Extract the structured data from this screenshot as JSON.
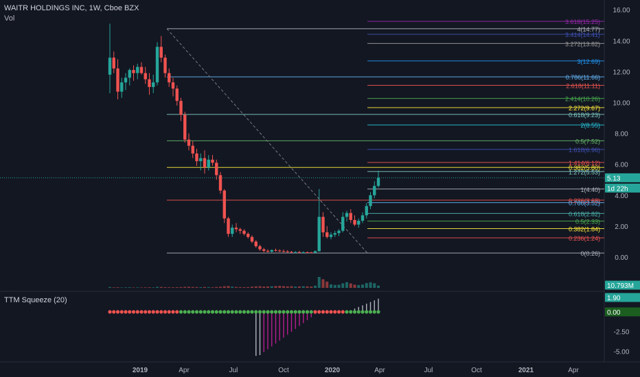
{
  "header": {
    "title": "WAITR HOLDINGS INC, 1W, Cboe BZX",
    "volume_label": "Vol",
    "indicator_label": "TTM Squeeze (20)"
  },
  "colors": {
    "background": "#131722",
    "up": "#26a69a",
    "down": "#ef5350",
    "squeeze_on": "#ef5350",
    "squeeze_off": "#4caf50",
    "momentum_neg": "#b71c8e",
    "momentum_pos": "#b2b5be"
  },
  "chart_data": [
    {
      "type": "candlestick",
      "title": "WAITR HOLDINGS INC, 1W, Cboe BZX",
      "ylim": [
        -0.5,
        16
      ],
      "y_ticks": [
        "0.00",
        "2.00",
        "4.00",
        "6.00",
        "8.00",
        "10.00",
        "12.00",
        "14.00",
        "16.00"
      ],
      "x_ticks": [
        "2019",
        "Apr",
        "Jul",
        "Oct",
        "2020",
        "Apr",
        "Jul",
        "Oct",
        "2021",
        "Apr"
      ],
      "series": [
        {
          "name": "WAITR HOLDINGS INC",
          "values": [
            {
              "o": 11.8,
              "h": 15.1,
              "l": 10.6,
              "c": 12.9
            },
            {
              "o": 12.9,
              "h": 13.3,
              "l": 11.9,
              "c": 12.2
            },
            {
              "o": 12.2,
              "h": 12.8,
              "l": 10.2,
              "c": 10.7
            },
            {
              "o": 10.7,
              "h": 11.6,
              "l": 10.3,
              "c": 11.3
            },
            {
              "o": 11.3,
              "h": 11.9,
              "l": 10.8,
              "c": 11.6
            },
            {
              "o": 11.6,
              "h": 12.2,
              "l": 11.1,
              "c": 12.1
            },
            {
              "o": 12.1,
              "h": 12.4,
              "l": 11.4,
              "c": 11.9
            },
            {
              "o": 11.9,
              "h": 12.5,
              "l": 11.5,
              "c": 12.3
            },
            {
              "o": 12.3,
              "h": 12.6,
              "l": 11.8,
              "c": 11.9
            },
            {
              "o": 11.9,
              "h": 12.3,
              "l": 11.2,
              "c": 11.5
            },
            {
              "o": 11.5,
              "h": 11.9,
              "l": 10.5,
              "c": 11.0
            },
            {
              "o": 11.0,
              "h": 11.8,
              "l": 10.6,
              "c": 11.3
            },
            {
              "o": 11.3,
              "h": 13.9,
              "l": 11.1,
              "c": 13.6
            },
            {
              "o": 13.6,
              "h": 14.3,
              "l": 12.6,
              "c": 12.9
            },
            {
              "o": 12.9,
              "h": 13.1,
              "l": 11.6,
              "c": 11.9
            },
            {
              "o": 11.9,
              "h": 12.2,
              "l": 11.0,
              "c": 11.3
            },
            {
              "o": 11.3,
              "h": 11.6,
              "l": 10.4,
              "c": 10.9
            },
            {
              "o": 10.9,
              "h": 11.1,
              "l": 9.8,
              "c": 10.1
            },
            {
              "o": 10.1,
              "h": 10.3,
              "l": 8.8,
              "c": 9.2
            },
            {
              "o": 9.2,
              "h": 9.4,
              "l": 7.4,
              "c": 7.6
            },
            {
              "o": 7.6,
              "h": 8.0,
              "l": 6.9,
              "c": 7.2
            },
            {
              "o": 7.2,
              "h": 7.5,
              "l": 6.4,
              "c": 6.7
            },
            {
              "o": 6.7,
              "h": 7.0,
              "l": 5.9,
              "c": 6.2
            },
            {
              "o": 6.2,
              "h": 6.7,
              "l": 5.6,
              "c": 6.4
            },
            {
              "o": 6.4,
              "h": 6.9,
              "l": 5.4,
              "c": 5.8
            },
            {
              "o": 5.8,
              "h": 6.6,
              "l": 5.6,
              "c": 6.3
            },
            {
              "o": 6.3,
              "h": 6.6,
              "l": 5.9,
              "c": 6.1
            },
            {
              "o": 6.1,
              "h": 6.3,
              "l": 5.0,
              "c": 5.3
            },
            {
              "o": 5.3,
              "h": 5.5,
              "l": 4.1,
              "c": 4.3
            },
            {
              "o": 4.3,
              "h": 4.4,
              "l": 2.2,
              "c": 2.5
            },
            {
              "o": 2.5,
              "h": 2.6,
              "l": 1.3,
              "c": 1.5
            },
            {
              "o": 1.5,
              "h": 2.1,
              "l": 1.3,
              "c": 1.9
            },
            {
              "o": 1.9,
              "h": 2.2,
              "l": 1.6,
              "c": 1.8
            },
            {
              "o": 1.8,
              "h": 1.9,
              "l": 1.5,
              "c": 1.7
            },
            {
              "o": 1.7,
              "h": 1.8,
              "l": 1.4,
              "c": 1.5
            },
            {
              "o": 1.5,
              "h": 1.6,
              "l": 1.2,
              "c": 1.3
            },
            {
              "o": 1.3,
              "h": 1.4,
              "l": 0.9,
              "c": 1.0
            },
            {
              "o": 1.0,
              "h": 1.1,
              "l": 0.6,
              "c": 0.7
            },
            {
              "o": 0.7,
              "h": 0.8,
              "l": 0.4,
              "c": 0.5
            },
            {
              "o": 0.5,
              "h": 0.6,
              "l": 0.3,
              "c": 0.4
            },
            {
              "o": 0.4,
              "h": 0.5,
              "l": 0.3,
              "c": 0.35
            },
            {
              "o": 0.35,
              "h": 0.5,
              "l": 0.3,
              "c": 0.45
            },
            {
              "o": 0.45,
              "h": 0.55,
              "l": 0.35,
              "c": 0.42
            },
            {
              "o": 0.42,
              "h": 0.5,
              "l": 0.32,
              "c": 0.38
            },
            {
              "o": 0.38,
              "h": 0.48,
              "l": 0.3,
              "c": 0.36
            },
            {
              "o": 0.36,
              "h": 0.45,
              "l": 0.28,
              "c": 0.33
            },
            {
              "o": 0.33,
              "h": 0.4,
              "l": 0.27,
              "c": 0.3
            },
            {
              "o": 0.3,
              "h": 0.38,
              "l": 0.26,
              "c": 0.32
            },
            {
              "o": 0.32,
              "h": 0.4,
              "l": 0.27,
              "c": 0.3
            },
            {
              "o": 0.3,
              "h": 0.37,
              "l": 0.26,
              "c": 0.31
            },
            {
              "o": 0.31,
              "h": 0.36,
              "l": 0.27,
              "c": 0.3
            },
            {
              "o": 0.3,
              "h": 0.34,
              "l": 0.26,
              "c": 0.28
            },
            {
              "o": 0.28,
              "h": 0.42,
              "l": 0.26,
              "c": 0.38
            },
            {
              "o": 0.38,
              "h": 4.4,
              "l": 0.35,
              "c": 2.6
            },
            {
              "o": 2.6,
              "h": 2.9,
              "l": 1.3,
              "c": 1.6
            },
            {
              "o": 1.6,
              "h": 2.0,
              "l": 1.2,
              "c": 1.3
            },
            {
              "o": 1.3,
              "h": 1.6,
              "l": 1.15,
              "c": 1.45
            },
            {
              "o": 1.45,
              "h": 1.7,
              "l": 1.3,
              "c": 1.55
            },
            {
              "o": 1.55,
              "h": 1.8,
              "l": 1.35,
              "c": 1.7
            },
            {
              "o": 1.7,
              "h": 2.9,
              "l": 1.6,
              "c": 2.6
            },
            {
              "o": 2.6,
              "h": 3.0,
              "l": 2.3,
              "c": 2.85
            },
            {
              "o": 2.85,
              "h": 3.1,
              "l": 2.2,
              "c": 2.4
            },
            {
              "o": 2.4,
              "h": 2.7,
              "l": 2.0,
              "c": 2.1
            },
            {
              "o": 2.1,
              "h": 2.5,
              "l": 1.9,
              "c": 2.35
            },
            {
              "o": 2.35,
              "h": 2.9,
              "l": 2.2,
              "c": 2.7
            },
            {
              "o": 2.7,
              "h": 3.5,
              "l": 2.5,
              "c": 3.3
            },
            {
              "o": 3.3,
              "h": 4.2,
              "l": 3.1,
              "c": 4.0
            },
            {
              "o": 4.0,
              "h": 4.9,
              "l": 3.8,
              "c": 4.6
            },
            {
              "o": 4.6,
              "h": 5.6,
              "l": 4.5,
              "c": 5.13
            }
          ]
        }
      ],
      "fibonacci": [
        {
          "label": "3.618(15.25)",
          "value": 15.25,
          "color": "#9c27b0"
        },
        {
          "label": "4(14.77)",
          "value": 14.77,
          "color": "#b2b5be"
        },
        {
          "label": "3.414(14.41)",
          "value": 14.41,
          "color": "#3f51b5"
        },
        {
          "label": "3.272(13.82)",
          "value": 13.82,
          "color": "#9e9e9e"
        },
        {
          "label": "3(12.69)",
          "value": 12.69,
          "color": "#2196f3"
        },
        {
          "label": "0.786(11.66)",
          "value": 11.66,
          "color": "#64b5f6"
        },
        {
          "label": "2.618(11.11)",
          "value": 11.11,
          "color": "#ef5350"
        },
        {
          "label": "2.414(10.26)",
          "value": 10.26,
          "color": "#4caf50"
        },
        {
          "label": "2.272(9.67)",
          "value": 9.67,
          "color": "#ffeb3b"
        },
        {
          "label": "0.618(9.23)",
          "value": 9.23,
          "color": "#80cbc4"
        },
        {
          "label": "2(8.55)",
          "value": 8.55,
          "color": "#26c6da"
        },
        {
          "label": "0.5(7.52)",
          "value": 7.52,
          "color": "#66bb6a"
        },
        {
          "label": "1.618(6.96)",
          "value": 6.96,
          "color": "#3f51b5"
        },
        {
          "label": "1.414(6.12)",
          "value": 6.12,
          "color": "#ef5350"
        },
        {
          "label": "0.382(5.80)",
          "value": 5.8,
          "color": "#ffeb3b"
        },
        {
          "label": "1.272(5.53)",
          "value": 5.53,
          "color": "#80cbc4"
        },
        {
          "label": "1(4.40)",
          "value": 4.4,
          "color": "#b2b5be"
        },
        {
          "label": "0.236(3.68)",
          "value": 3.68,
          "color": "#ef5350"
        },
        {
          "label": "0.786(3.52)",
          "value": 3.52,
          "color": "#64b5f6"
        },
        {
          "label": "0.618(2.82)",
          "value": 2.82,
          "color": "#4db6ac"
        },
        {
          "label": "0.5(2.33)",
          "value": 2.33,
          "color": "#4caf50"
        },
        {
          "label": "0.382(1.84)",
          "value": 1.84,
          "color": "#ffeb3b"
        },
        {
          "label": "0.236(1.24)",
          "value": 1.24,
          "color": "#ef5350"
        },
        {
          "label": "0(0.26)",
          "value": 0.26,
          "color": "#b2b5be"
        }
      ],
      "last_price": {
        "value": 5.13,
        "label": "5.13",
        "countdown": "1d 22h"
      },
      "volume": {
        "badge": "10.793M",
        "values": [
          0.8,
          0.5,
          0.6,
          0.4,
          0.5,
          0.6,
          0.4,
          0.5,
          0.4,
          0.5,
          0.6,
          0.5,
          1.0,
          0.9,
          0.7,
          0.6,
          0.6,
          0.7,
          0.8,
          1.0,
          1.1,
          0.9,
          0.8,
          0.7,
          0.9,
          0.8,
          0.6,
          0.9,
          1.1,
          1.6,
          1.8,
          1.2,
          0.9,
          0.8,
          0.7,
          0.8,
          1.2,
          1.5,
          1.6,
          1.3,
          1.4,
          1.6,
          1.8,
          2.0,
          1.7,
          1.5,
          1.6,
          1.3,
          1.4,
          1.6,
          1.5,
          1.3,
          2.2,
          10.8,
          8.5,
          6.2,
          3.5,
          2.9,
          3.1,
          4.5,
          5.6,
          4.4,
          3.2,
          2.8,
          3.3,
          4.8,
          5.5,
          4.6,
          2.3
        ]
      },
      "squeeze": {
        "y_ticks": [
          "-5.00",
          "-2.50",
          "0.00"
        ],
        "momentum_label": "1.90",
        "zero_label": "0.00",
        "ylim": [
          -5.6,
          2.5
        ]
      }
    }
  ]
}
